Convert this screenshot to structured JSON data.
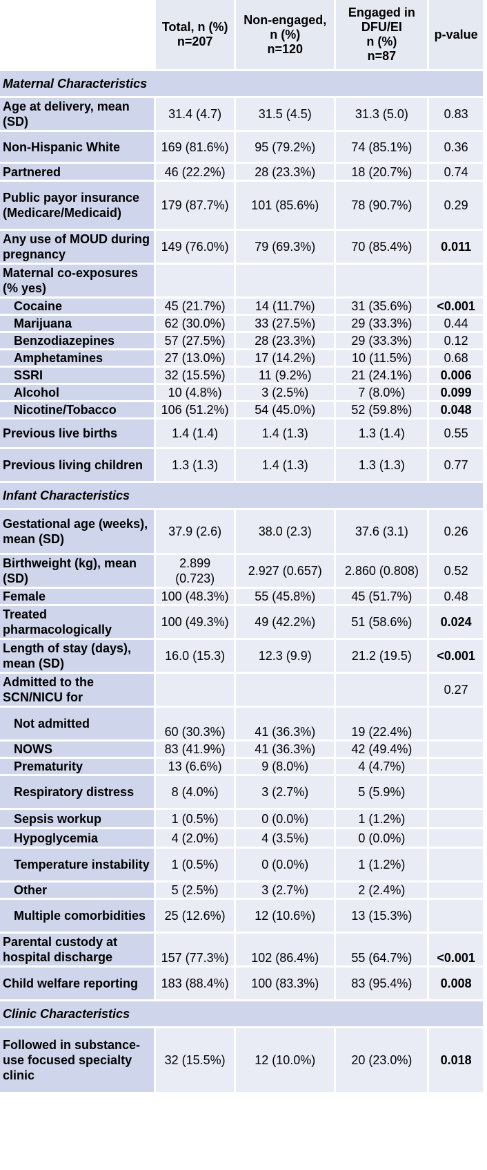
{
  "header": {
    "total": [
      "Total, n (%)",
      "n=207"
    ],
    "non_engaged": [
      "Non-engaged,",
      "n (%)",
      "n=120"
    ],
    "engaged": [
      "Engaged in",
      "DFU/EI",
      "n (%)",
      "n=87"
    ],
    "pvalue": "p-value"
  },
  "rows": [
    {
      "type": "section",
      "label": "Maternal Characteristics",
      "h": 36
    },
    {
      "label": "Age at delivery, mean (SD)",
      "total": "31.4 (4.7)",
      "non": "31.5 (4.5)",
      "eng": "31.3 (5.0)",
      "p": "0.83",
      "h": 46
    },
    {
      "label": "Non-Hispanic White",
      "total": "169 (81.6%)",
      "non": "95 (79.2%)",
      "eng": "74 (85.1%)",
      "p": "0.36",
      "h": 43
    },
    {
      "label": "Partnered",
      "total": "46 (22.2%)",
      "non": "28 (23.3%)",
      "eng": "18 (20.7%)",
      "p": "0.74",
      "h": 23
    },
    {
      "label": "Public payor insurance (Medicare/Medicaid)",
      "total": "179 (87.7%)",
      "non": "101 (85.6%)",
      "eng": "78 (90.7%)",
      "p": "0.29",
      "h": 68
    },
    {
      "label": "Any use of MOUD during pregnancy",
      "total": "149 (76.0%)",
      "non": "79 (69.3%)",
      "eng": "70 (85.4%)",
      "p": "0.011",
      "sig": true,
      "h": 46
    },
    {
      "label": "Maternal co-exposures (% yes)",
      "total": "",
      "non": "",
      "eng": "",
      "p": "",
      "h": 46
    },
    {
      "label": "Cocaine",
      "sub": true,
      "total": "45 (21.7%)",
      "non": "14 (11.7%)",
      "eng": "31 (35.6%)",
      "p": "<0.001",
      "sig": true,
      "h": 22
    },
    {
      "label": "Marijuana",
      "sub": true,
      "total": "62 (30.0%)",
      "non": "33 (27.5%)",
      "eng": "29 (33.3%)",
      "p": "0.44",
      "h": 22
    },
    {
      "label": "Benzodiazepines",
      "sub": true,
      "total": "57 (27.5%)",
      "non": "28 (23.3%)",
      "eng": "29 (33.3%)",
      "p": "0.12",
      "h": 22
    },
    {
      "label": "Amphetamines",
      "sub": true,
      "total": "27 (13.0%)",
      "non": "17 (14.2%)",
      "eng": "10 (11.5%)",
      "p": "0.68",
      "h": 22
    },
    {
      "label": "SSRI",
      "sub": true,
      "total": "32 (15.5%)",
      "non": "11 (9.2%)",
      "eng": "21 (24.1%)",
      "p": "0.006",
      "sig": true,
      "h": 22
    },
    {
      "label": "Alcohol",
      "sub": true,
      "total": "10 (4.8%)",
      "non": "3 (2.5%)",
      "eng": "7 (8.0%)",
      "p": "0.099",
      "sig": true,
      "h": 22
    },
    {
      "label": "Nicotine/Tobacco",
      "sub": true,
      "total": "106 (51.2%)",
      "non": "54 (45.0%)",
      "eng": "52 (59.8%)",
      "p": "0.048",
      "sig": true,
      "h": 22
    },
    {
      "label": "Previous live births",
      "total": "1.4 (1.4)",
      "non": "1.4 (1.3)",
      "eng": "1.3 (1.4)",
      "p": "0.55",
      "h": 40
    },
    {
      "label": "Previous living children",
      "total": "1.3 (1.3)",
      "non": "1.4 (1.3)",
      "eng": "1.3 (1.3)",
      "p": "0.77",
      "h": 46
    },
    {
      "type": "section",
      "label": "Infant Characteristics",
      "h": 36
    },
    {
      "label": "Gestational age (weeks), mean (SD)",
      "total": "37.9 (2.6)",
      "non": "38.0 (2.3)",
      "eng": "37.6 (3.1)",
      "p": "0.26",
      "h": 62
    },
    {
      "label": "Birthweight (kg), mean (SD)",
      "total": "2.899 (0.723)",
      "non": "2.927 (0.657)",
      "eng": "2.860 (0.808)",
      "p": "0.52",
      "h": 46
    },
    {
      "label": "Female",
      "total": "100 (48.3%)",
      "non": "55 (45.8%)",
      "eng": "45 (51.7%)",
      "p": "0.48",
      "h": 22
    },
    {
      "label": "Treated pharmacologically",
      "total": "100 (49.3%)",
      "non": "49 (42.2%)",
      "eng": "51 (58.6%)",
      "p": "0.024",
      "sig": true,
      "h": 46
    },
    {
      "label": "Length of stay (days), mean (SD)",
      "total": "16.0 (15.3)",
      "non": "12.3 (9.9)",
      "eng": "21.2 (19.5)",
      "p": "<0.001",
      "sig": true,
      "h": 46
    },
    {
      "label": "Admitted to the SCN/NICU for",
      "total": "",
      "non": "",
      "eng": "",
      "p": "0.27",
      "h": 46
    },
    {
      "label": "Not admitted",
      "sub": true,
      "total": "60 (30.3%)",
      "non": "41 (36.3%)",
      "eng": "19 (22.4%)",
      "p": "",
      "bot": true,
      "h": 46
    },
    {
      "label": "NOWS",
      "sub": true,
      "total": "83 (41.9%)",
      "non": "41 (36.3%)",
      "eng": "42 (49.4%)",
      "p": "",
      "h": 22
    },
    {
      "label": "Prematurity",
      "sub": true,
      "total": "13 (6.6%)",
      "non": "9 (8.0%)",
      "eng": "4 (4.7%)",
      "p": "",
      "h": 22
    },
    {
      "label": "Respiratory distress",
      "sub": true,
      "total": "8 (4.0%)",
      "non": "3 (2.7%)",
      "eng": "5 (5.9%)",
      "p": "",
      "h": 46
    },
    {
      "label": "Sepsis workup",
      "sub": true,
      "total": "1 (0.5%)",
      "non": "0 (0.0%)",
      "eng": "1 (1.2%)",
      "p": "",
      "h": 25
    },
    {
      "label": "Hypoglycemia",
      "sub": true,
      "total": "4 (2.0%)",
      "non": "4 (3.5%)",
      "eng": "0 (0.0%)",
      "p": "",
      "h": 25
    },
    {
      "label": "Temperature instability",
      "sub": true,
      "total": "1 (0.5%)",
      "non": "0 (0.0%)",
      "eng": "1 (1.2%)",
      "p": "",
      "h": 46
    },
    {
      "label": "Other",
      "sub": true,
      "total": "5 (2.5%)",
      "non": "3 (2.7%)",
      "eng": "2 (2.4%)",
      "p": "",
      "h": 22
    },
    {
      "label": "Multiple comorbidities",
      "sub": true,
      "total": "25 (12.6%)",
      "non": "12 (10.6%)",
      "eng": "13 (15.3%)",
      "p": "",
      "h": 46
    },
    {
      "label": "Parental custody at hospital discharge",
      "total": "157 (77.3%)",
      "non": "102 (86.4%)",
      "eng": "55 (64.7%)",
      "p": "<0.001",
      "sig": true,
      "bot": true,
      "h": 46
    },
    {
      "label": "Child welfare reporting",
      "total": "183 (88.4%)",
      "non": "100 (83.3%)",
      "eng": "83 (95.4%)",
      "p": "0.008",
      "sig": true,
      "h": 46
    },
    {
      "type": "section",
      "label": "Clinic Characteristics",
      "h": 36
    },
    {
      "label": "Followed in substance-use focused specialty clinic",
      "total": "32 (15.5%)",
      "non": "12 (10.0%)",
      "eng": "20 (23.0%)",
      "p": "0.018",
      "sig": true,
      "h": 92
    }
  ]
}
